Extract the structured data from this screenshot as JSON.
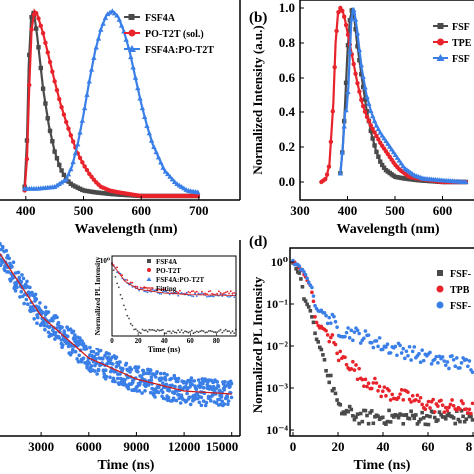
{
  "panels": {
    "a": {
      "label": "",
      "xlabel": "Wavelength (nm)",
      "ylabel": "",
      "x_ticks": [
        "400",
        "500",
        "600",
        "700"
      ],
      "y_ticks": [],
      "legend": [
        "FSF4A",
        "PO-T2T (sol.)",
        "FSF4A:PO-T2T"
      ]
    },
    "b": {
      "label": "(b)",
      "xlabel": "Wavelength (nm)",
      "ylabel": "Normalized Intensity (a.u.)",
      "x_ticks": [
        "300",
        "400",
        "500",
        "600"
      ],
      "y_ticks": [
        "0.0",
        "0.2",
        "0.4",
        "0.6",
        "0.8",
        "1.0"
      ],
      "legend": [
        "FSF",
        "TPE",
        "FSF"
      ]
    },
    "c": {
      "label": "",
      "xlabel": "Time (ns)",
      "ylabel": "",
      "x_ticks": [
        "3000",
        "6000",
        "9000",
        "12000",
        "15000"
      ],
      "inset": {
        "xlabel": "Time (ns)",
        "ylabel": "Normalized PL Intensity",
        "x_ticks": [
          "0",
          "20",
          "40",
          "60",
          "80"
        ],
        "y_ticks": [
          "10⁰"
        ],
        "legend": [
          "FSF4A",
          "PO-T2T",
          "FSF4A:PO-T2T",
          "Fitting"
        ]
      }
    },
    "d": {
      "label": "(d)",
      "xlabel": "Time (ns)",
      "ylabel": "Normalized PL Intensity",
      "x_ticks": [
        "0",
        "20",
        "40",
        "60",
        "8"
      ],
      "y_ticks": [
        "10⁰",
        "10⁻¹",
        "10⁻²",
        "10⁻³",
        "10⁻⁴"
      ],
      "legend": [
        "FSF-",
        "TPB",
        "FSF-"
      ]
    }
  },
  "colors": {
    "dark": "#4a4a4a",
    "red": "#e8232b",
    "blue": "#3a7fe8",
    "fit": "#d01c1c"
  },
  "chart_data": [
    {
      "panel": "a",
      "type": "line",
      "xlabel": "Wavelength (nm)",
      "xlim": [
        350,
        715
      ],
      "ylim": [
        0,
        1.05
      ],
      "series": [
        {
          "name": "FSF4A",
          "color": "dark",
          "x": [
            398,
            402,
            405,
            409,
            412,
            416,
            420,
            425,
            430,
            440,
            450,
            460,
            470,
            480,
            500,
            520,
            550,
            600,
            650,
            700
          ],
          "y": [
            0.05,
            0.3,
            0.7,
            0.95,
            1.0,
            0.95,
            0.86,
            0.72,
            0.58,
            0.38,
            0.24,
            0.15,
            0.09,
            0.06,
            0.03,
            0.02,
            0.01,
            0.0,
            0.0,
            0.0
          ]
        },
        {
          "name": "PO-T2T (sol.)",
          "color": "red",
          "x": [
            398,
            402,
            406,
            410,
            415,
            420,
            430,
            440,
            450,
            460,
            470,
            480,
            490,
            500,
            510,
            520,
            530,
            545,
            560,
            580,
            600,
            650,
            700
          ],
          "y": [
            0.03,
            0.2,
            0.6,
            0.9,
            1.0,
            0.98,
            0.88,
            0.75,
            0.62,
            0.5,
            0.4,
            0.31,
            0.23,
            0.17,
            0.12,
            0.08,
            0.05,
            0.03,
            0.02,
            0.01,
            0.0,
            0.0,
            0.0
          ]
        },
        {
          "name": "FSF4A:PO-T2T",
          "color": "blue",
          "x": [
            398,
            420,
            450,
            470,
            480,
            490,
            500,
            510,
            520,
            530,
            540,
            550,
            560,
            570,
            580,
            590,
            600,
            610,
            620,
            640,
            660,
            680,
            700
          ],
          "y": [
            0.04,
            0.04,
            0.05,
            0.09,
            0.16,
            0.28,
            0.44,
            0.62,
            0.78,
            0.9,
            0.98,
            1.0,
            0.97,
            0.89,
            0.78,
            0.64,
            0.5,
            0.38,
            0.28,
            0.14,
            0.07,
            0.03,
            0.02
          ]
        }
      ]
    },
    {
      "panel": "b",
      "type": "line",
      "xlabel": "Wavelength (nm)",
      "ylabel": "Normalized Intensity (a.u.)",
      "xlim": [
        290,
        660
      ],
      "ylim": [
        -0.05,
        1.08
      ],
      "series": [
        {
          "name": "FSF",
          "color": "dark",
          "x": [
            385,
            390,
            395,
            400,
            405,
            410,
            415,
            420,
            430,
            440,
            450,
            460,
            470,
            480,
            500,
            520,
            550,
            600,
            650
          ],
          "y": [
            0.05,
            0.2,
            0.45,
            0.75,
            0.93,
            1.0,
            0.93,
            0.8,
            0.6,
            0.42,
            0.28,
            0.18,
            0.11,
            0.07,
            0.03,
            0.02,
            0.01,
            0.0,
            0.0
          ]
        },
        {
          "name": "TPE",
          "color": "red",
          "x": [
            345,
            355,
            362,
            370,
            375,
            380,
            385,
            390,
            395,
            400,
            410,
            420,
            430,
            440,
            450,
            460,
            470,
            480,
            490,
            500,
            510,
            520,
            530,
            550,
            600,
            650
          ],
          "y": [
            0.0,
            0.02,
            0.1,
            0.45,
            0.8,
            0.97,
            1.0,
            0.98,
            0.93,
            0.86,
            0.72,
            0.58,
            0.46,
            0.38,
            0.32,
            0.27,
            0.22,
            0.18,
            0.14,
            0.1,
            0.07,
            0.05,
            0.03,
            0.02,
            0.0,
            0.0
          ]
        },
        {
          "name": "FSF",
          "color": "blue",
          "x": [
            385,
            390,
            395,
            398,
            402,
            405,
            408,
            412,
            415,
            420,
            425,
            430,
            440,
            450,
            460,
            470,
            480,
            490,
            500,
            510,
            520,
            540,
            560,
            600,
            650
          ],
          "y": [
            0.05,
            0.2,
            0.4,
            0.42,
            0.55,
            0.75,
            0.92,
            1.0,
            0.97,
            0.88,
            0.76,
            0.65,
            0.5,
            0.4,
            0.33,
            0.28,
            0.24,
            0.2,
            0.16,
            0.12,
            0.08,
            0.04,
            0.02,
            0.01,
            0.0
          ]
        }
      ]
    },
    {
      "panel": "c",
      "type": "scatter",
      "xlabel": "Time (ns)",
      "xlim": [
        0,
        15200
      ],
      "ylim": [
        0,
        1
      ],
      "series": [
        {
          "name": "FSF4A:PO-T2T",
          "color": "blue",
          "model": "exponential decay with noise",
          "x": [
            0,
            3000,
            6000,
            9000,
            12000,
            15000
          ],
          "y": [
            0.64,
            0.4,
            0.26,
            0.19,
            0.15,
            0.14
          ]
        },
        {
          "name": "Fitting",
          "color": "fit",
          "x": [
            0,
            3000,
            6000,
            9000,
            12000,
            15000
          ],
          "y": [
            0.64,
            0.4,
            0.26,
            0.19,
            0.15,
            0.14
          ]
        }
      ],
      "inset": {
        "type": "scatter",
        "xlabel": "Time (ns)",
        "ylabel": "Normalized PL Intensity",
        "xlim": [
          0,
          95
        ],
        "ylim": [
          0,
          1
        ],
        "series": [
          {
            "name": "FSF4A",
            "color": "dark",
            "x": [
              0,
              5,
              10,
              15,
              20,
              95
            ],
            "y": [
              0.95,
              0.62,
              0.35,
              0.12,
              0.06,
              0.06
            ]
          },
          {
            "name": "PO-T2T",
            "color": "red",
            "x": [
              0,
              10,
              20,
              40,
              60,
              95
            ],
            "y": [
              0.95,
              0.72,
              0.62,
              0.58,
              0.56,
              0.55
            ]
          },
          {
            "name": "FSF4A:PO-T2T",
            "color": "blue",
            "x": [
              0,
              10,
              20,
              40,
              60,
              95
            ],
            "y": [
              0.93,
              0.7,
              0.6,
              0.55,
              0.53,
              0.52
            ]
          },
          {
            "name": "Fitting",
            "color": "fit",
            "x": [
              0,
              10,
              20,
              40,
              60,
              95
            ],
            "y": [
              0.93,
              0.7,
              0.6,
              0.55,
              0.53,
              0.52
            ]
          }
        ]
      }
    },
    {
      "panel": "d",
      "type": "scatter",
      "log_y": true,
      "xlabel": "Time (ns)",
      "ylabel": "Normalized PL Intensity",
      "xlim": [
        0,
        85
      ],
      "ylim": [
        0.0001,
        1.5
      ],
      "series": [
        {
          "name": "FSF-",
          "color": "dark",
          "x": [
            0,
            5,
            10,
            15,
            20,
            30,
            85
          ],
          "y": [
            1.0,
            0.12,
            0.015,
            0.002,
            0.0003,
            0.0002,
            0.0002
          ]
        },
        {
          "name": "TPB",
          "color": "red",
          "x": [
            0,
            10,
            20,
            30,
            40,
            60,
            85
          ],
          "y": [
            1.0,
            0.035,
            0.006,
            0.0018,
            0.0008,
            0.0004,
            0.0003
          ]
        },
        {
          "name": "FSF-",
          "color": "blue",
          "x": [
            0,
            10,
            20,
            40,
            60,
            85
          ],
          "y": [
            1.0,
            0.08,
            0.025,
            0.01,
            0.005,
            0.003
          ]
        }
      ]
    }
  ]
}
